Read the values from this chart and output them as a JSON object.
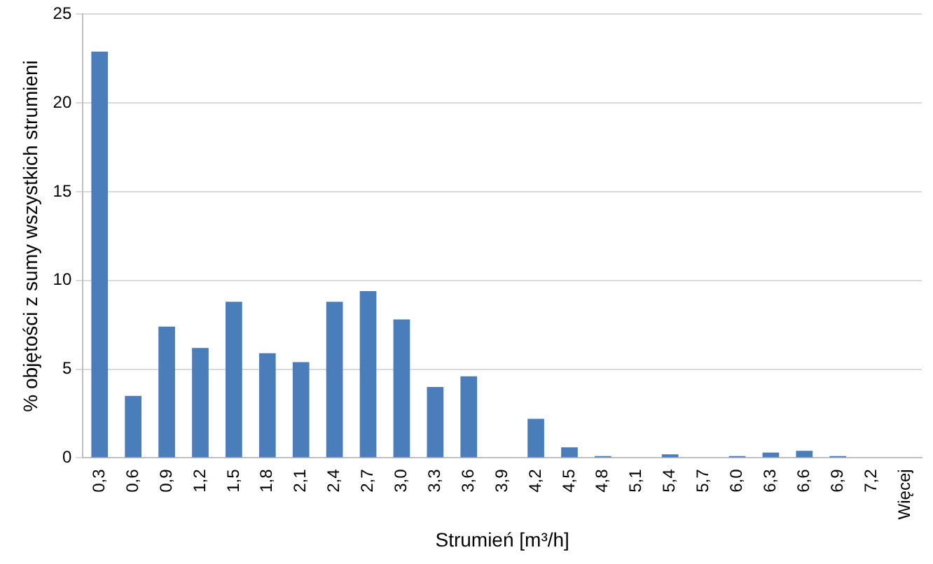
{
  "chart_data": {
    "type": "bar",
    "xlabel": "Strumień [m³/h]",
    "ylabel": "% objętości z sumy wszystkich strumieni",
    "categories": [
      "0,3",
      "0,6",
      "0,9",
      "1,2",
      "1,5",
      "1,8",
      "2,1",
      "2,4",
      "2,7",
      "3,0",
      "3,3",
      "3,6",
      "3,9",
      "4,2",
      "4,5",
      "4,8",
      "5,1",
      "5,4",
      "5,7",
      "6,0",
      "6,3",
      "6,6",
      "6,9",
      "7,2",
      "Więcej"
    ],
    "values": [
      22.9,
      3.5,
      7.4,
      6.2,
      8.8,
      5.9,
      5.4,
      8.8,
      9.4,
      7.8,
      4.0,
      4.6,
      0,
      2.2,
      0.6,
      0.1,
      0,
      0.2,
      0,
      0.1,
      0.3,
      0.4,
      0.1,
      0,
      0
    ],
    "color": "#4a7ebb",
    "ylim": [
      0,
      25
    ],
    "yticks": [
      0,
      5,
      10,
      15,
      20,
      25
    ],
    "grid": "y",
    "legend": false
  }
}
